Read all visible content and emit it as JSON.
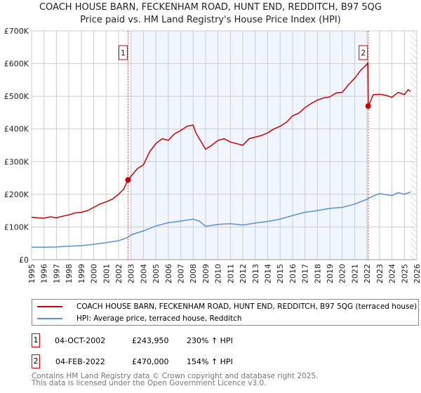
{
  "chart_data": {
    "type": "line",
    "title": "COACH HOUSE BARN, FECKENHAM ROAD, HUNT END, REDDITCH, B97 5QG",
    "subtitle": "Price paid vs. HM Land Registry's House Price Index (HPI)",
    "xlim": [
      1995,
      2026
    ],
    "ylim": [
      0,
      700000
    ],
    "y_ticks": [
      {
        "v": 0,
        "label": "£0"
      },
      {
        "v": 100000,
        "label": "£100K"
      },
      {
        "v": 200000,
        "label": "£200K"
      },
      {
        "v": 300000,
        "label": "£300K"
      },
      {
        "v": 400000,
        "label": "£400K"
      },
      {
        "v": 500000,
        "label": "£500K"
      },
      {
        "v": 600000,
        "label": "£600K"
      },
      {
        "v": 700000,
        "label": "£700K"
      }
    ],
    "x_ticks": [
      "1995",
      "1996",
      "1997",
      "1998",
      "1999",
      "2000",
      "2001",
      "2002",
      "2003",
      "2004",
      "2005",
      "2006",
      "2007",
      "2008",
      "2009",
      "2010",
      "2011",
      "2012",
      "2013",
      "2014",
      "2015",
      "2016",
      "2017",
      "2018",
      "2019",
      "2020",
      "2021",
      "2022",
      "2023",
      "2024",
      "2025",
      "2026"
    ],
    "series": [
      {
        "name": "COACH HOUSE BARN, FECKENHAM ROAD, HUNT END, REDDITCH, B97 5QG (terraced house)",
        "color": "#cc0000",
        "x": [
          1995,
          1995.5,
          1996,
          1996.5,
          1997,
          1997.5,
          1998,
          1998.5,
          1999,
          1999.5,
          2000,
          2000.5,
          2001,
          2001.5,
          2002,
          2002.4,
          2002.75,
          2003,
          2003.5,
          2004,
          2004.5,
          2005,
          2005.5,
          2006,
          2006.5,
          2007,
          2007.5,
          2008,
          2008.2,
          2008.5,
          2009,
          2009.5,
          2010,
          2010.5,
          2011,
          2011.5,
          2012,
          2012.5,
          2013,
          2013.5,
          2014,
          2014.5,
          2015,
          2015.5,
          2016,
          2016.5,
          2017,
          2017.5,
          2018,
          2018.5,
          2019,
          2019.5,
          2020,
          2020.5,
          2021,
          2021.5,
          2022,
          2022.06,
          2022.1,
          2022.5,
          2023,
          2023.5,
          2024,
          2024.5,
          2025,
          2025.3,
          2025.5
        ],
        "y": [
          130000,
          128000,
          127000,
          131000,
          128000,
          133000,
          137000,
          143000,
          145000,
          150000,
          160000,
          170000,
          177000,
          185000,
          200000,
          215000,
          244000,
          255000,
          278000,
          290000,
          330000,
          355000,
          370000,
          365000,
          385000,
          395000,
          408000,
          412000,
          390000,
          370000,
          338000,
          350000,
          365000,
          370000,
          360000,
          355000,
          350000,
          370000,
          375000,
          380000,
          388000,
          400000,
          408000,
          420000,
          440000,
          448000,
          465000,
          478000,
          488000,
          495000,
          498000,
          510000,
          512000,
          535000,
          555000,
          580000,
          598000,
          604000,
          470000,
          505000,
          506000,
          503000,
          497000,
          512000,
          505000,
          520000,
          515000
        ]
      },
      {
        "name": "HPI: Average price, terraced house, Redditch",
        "color": "#5b8fd4",
        "x": [
          1995,
          1996,
          1997,
          1998,
          1999,
          2000,
          2001,
          2002,
          2002.75,
          2003,
          2004,
          2005,
          2006,
          2007,
          2008,
          2008.5,
          2009,
          2010,
          2011,
          2012,
          2013,
          2014,
          2015,
          2016,
          2017,
          2018,
          2019,
          2020,
          2021,
          2022,
          2022.5,
          2023,
          2024,
          2024.5,
          2025,
          2025.5
        ],
        "y": [
          38000,
          38000,
          39000,
          41000,
          43000,
          47000,
          52000,
          58000,
          68000,
          76000,
          88000,
          103000,
          113000,
          118000,
          124000,
          118000,
          102000,
          108000,
          110000,
          106000,
          112000,
          117000,
          124000,
          135000,
          145000,
          150000,
          157000,
          160000,
          170000,
          185000,
          195000,
          202000,
          196000,
          205000,
          200000,
          207000
        ]
      }
    ],
    "sales": [
      {
        "n": "1",
        "date": "04-OCT-2002",
        "x": 2002.76,
        "price": "£243,950",
        "value": 243950,
        "hpi": "230% ↑ HPI"
      },
      {
        "n": "2",
        "date": "04-FEB-2022",
        "x": 2022.09,
        "price": "£470,000",
        "value": 470000,
        "hpi": "154% ↑ HPI"
      }
    ],
    "legend_position": "bottom"
  },
  "footer": [
    "Contains HM Land Registry data © Crown copyright and database right 2025.",
    "This data is licensed under the Open Government Licence v3.0."
  ]
}
